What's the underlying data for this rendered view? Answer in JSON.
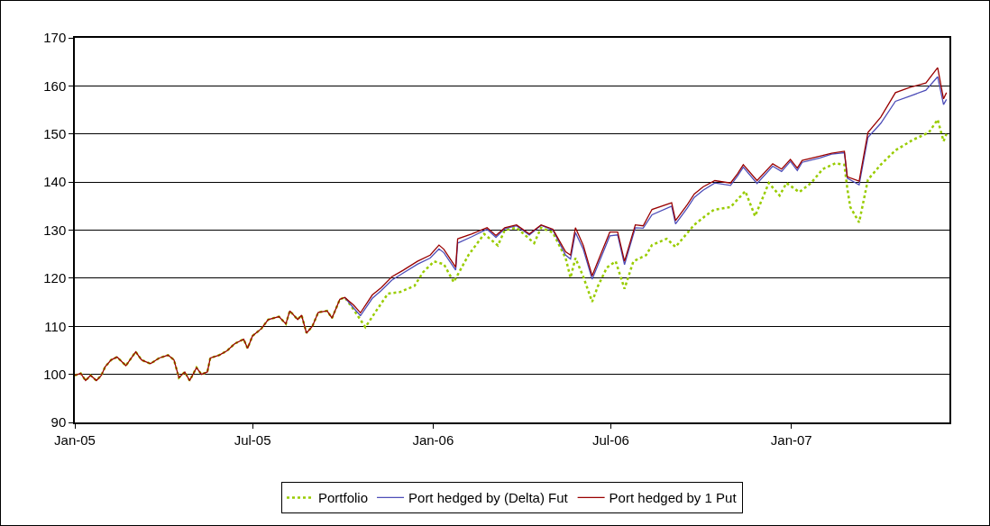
{
  "chart_data": {
    "type": "line",
    "grid": "y",
    "legend": "bottom",
    "marker": "none",
    "line_style": "solid",
    "xlim": [
      "2005-01-01",
      "2007-06-11"
    ],
    "xticks": [
      {
        "value": "2005-01-01",
        "label": "Jan-05"
      },
      {
        "value": "2005-07-01",
        "label": "Jul-05"
      },
      {
        "value": "2006-01-01",
        "label": "Jan-06"
      },
      {
        "value": "2006-07-01",
        "label": "Jul-06"
      },
      {
        "value": "2007-01-01",
        "label": "Jan-07"
      }
    ],
    "ylim": [
      90,
      170
    ],
    "yticks": [
      90,
      100,
      110,
      120,
      130,
      140,
      150,
      160,
      170
    ],
    "x": [
      "2005-01-01",
      "2005-01-07",
      "2005-01-12",
      "2005-01-17",
      "2005-01-23",
      "2005-01-28",
      "2005-02-01",
      "2005-02-07",
      "2005-02-13",
      "2005-02-22",
      "2005-03-04",
      "2005-03-10",
      "2005-03-19",
      "2005-03-28",
      "2005-04-06",
      "2005-04-12",
      "2005-04-17",
      "2005-04-23",
      "2005-04-28",
      "2005-05-05",
      "2005-05-10",
      "2005-05-16",
      "2005-05-19",
      "2005-05-28",
      "2005-06-05",
      "2005-06-13",
      "2005-06-22",
      "2005-06-26",
      "2005-07-01",
      "2005-07-10",
      "2005-07-17",
      "2005-07-28",
      "2005-08-04",
      "2005-08-08",
      "2005-08-16",
      "2005-08-20",
      "2005-08-25",
      "2005-08-31",
      "2005-09-06",
      "2005-09-15",
      "2005-09-20",
      "2005-09-28",
      "2005-10-03",
      "2005-10-12",
      "2005-10-19",
      "2005-10-31",
      "2005-11-09",
      "2005-11-20",
      "2005-12-01",
      "2005-12-16",
      "2005-12-29",
      "2006-01-07",
      "2006-01-12",
      "2006-01-24",
      "2006-01-26",
      "2006-02-09",
      "2006-02-25",
      "2006-03-06",
      "2006-03-15",
      "2006-03-27",
      "2006-04-09",
      "2006-04-21",
      "2006-05-03",
      "2006-05-09",
      "2006-05-16",
      "2006-05-21",
      "2006-05-26",
      "2006-06-03",
      "2006-06-12",
      "2006-06-21",
      "2006-06-30",
      "2006-07-08",
      "2006-07-15",
      "2006-07-26",
      "2006-08-03",
      "2006-08-12",
      "2006-09-01",
      "2006-09-05",
      "2006-09-17",
      "2006-09-24",
      "2006-10-03",
      "2006-10-15",
      "2006-10-31",
      "2006-11-07",
      "2006-11-13",
      "2006-11-27",
      "2006-12-13",
      "2006-12-22",
      "2006-12-31",
      "2007-01-07",
      "2007-01-12",
      "2007-01-30",
      "2007-02-11",
      "2007-02-24",
      "2007-02-27",
      "2007-03-11",
      "2007-03-20",
      "2007-04-02",
      "2007-04-17",
      "2007-05-02",
      "2007-05-18",
      "2007-05-30",
      "2007-06-05",
      "2007-06-08"
    ],
    "series": [
      {
        "name": "Portfolio",
        "color": "#99cc00",
        "line_style": "dotted",
        "x": [
          "2005-01-01",
          "2005-01-07",
          "2005-01-12",
          "2005-01-17",
          "2005-01-23",
          "2005-01-28",
          "2005-02-01",
          "2005-02-07",
          "2005-02-13",
          "2005-02-22",
          "2005-03-04",
          "2005-03-10",
          "2005-03-19",
          "2005-03-28",
          "2005-04-06",
          "2005-04-12",
          "2005-04-17",
          "2005-04-23",
          "2005-04-28",
          "2005-05-05",
          "2005-05-10",
          "2005-05-16",
          "2005-05-19",
          "2005-05-28",
          "2005-06-05",
          "2005-06-13",
          "2005-06-22",
          "2005-06-26",
          "2005-07-01",
          "2005-07-10",
          "2005-07-17",
          "2005-07-28",
          "2005-08-04",
          "2005-08-08",
          "2005-08-16",
          "2005-08-20",
          "2005-08-25",
          "2005-08-31",
          "2005-09-06",
          "2005-09-15",
          "2005-09-20",
          "2005-09-28",
          "2005-10-03",
          "2005-10-12",
          "2005-10-24",
          "2005-11-04",
          "2005-11-16",
          "2005-11-28",
          "2005-12-13",
          "2005-12-22",
          "2006-01-02",
          "2006-01-12",
          "2006-01-22",
          "2006-02-06",
          "2006-02-22",
          "2006-03-08",
          "2006-03-15",
          "2006-03-27",
          "2006-04-14",
          "2006-04-21",
          "2006-05-03",
          "2006-05-16",
          "2006-05-21",
          "2006-05-26",
          "2006-06-03",
          "2006-06-12",
          "2006-06-18",
          "2006-06-27",
          "2006-07-06",
          "2006-07-15",
          "2006-07-24",
          "2006-08-06",
          "2006-08-12",
          "2006-08-27",
          "2006-09-05",
          "2006-09-24",
          "2006-10-05",
          "2006-10-14",
          "2006-10-31",
          "2006-11-15",
          "2006-11-25",
          "2006-12-09",
          "2006-12-20",
          "2006-12-27",
          "2007-01-09",
          "2007-01-21",
          "2007-02-02",
          "2007-02-15",
          "2007-02-24",
          "2007-02-27",
          "2007-03-02",
          "2007-03-11",
          "2007-03-20",
          "2007-04-02",
          "2007-04-17",
          "2007-05-05",
          "2007-05-21",
          "2007-05-30",
          "2007-06-05",
          "2007-06-08"
        ],
        "values": [
          99.8,
          100.2,
          98.7,
          99.8,
          98.7,
          99.8,
          101.6,
          103,
          103.6,
          101.8,
          104.7,
          103,
          102.2,
          103.4,
          104,
          103,
          99.3,
          100.5,
          98.7,
          101.4,
          100,
          100.5,
          103.4,
          104,
          104.9,
          106.4,
          107.3,
          105.4,
          108,
          109.5,
          111.4,
          112,
          110.5,
          113.2,
          111.4,
          112.3,
          108.6,
          110,
          112.9,
          113.2,
          111.7,
          115.6,
          116,
          113.5,
          109.8,
          113.2,
          116.8,
          117.1,
          118.4,
          121.3,
          123.5,
          122.9,
          119.2,
          124.8,
          129.2,
          126.8,
          130,
          130.5,
          127.3,
          130.5,
          129.5,
          124.2,
          120.1,
          124.2,
          120.3,
          115.1,
          118.4,
          122.2,
          123.5,
          117.8,
          123.5,
          124.8,
          126.9,
          128.2,
          126.5,
          131.1,
          132.9,
          134.2,
          134.8,
          138.1,
          132.9,
          139.8,
          137.2,
          139.8,
          137.9,
          139.8,
          142.7,
          143.9,
          143.6,
          138.6,
          134.8,
          131.6,
          140.5,
          143.6,
          146.6,
          148.8,
          150.3,
          153,
          148.5,
          150
        ]
      },
      {
        "name": "Port hedged by (Delta) Fut",
        "color": "#4d4db8",
        "values": [
          null,
          null,
          null,
          null,
          null,
          null,
          null,
          null,
          null,
          null,
          null,
          null,
          null,
          null,
          null,
          null,
          null,
          null,
          null,
          null,
          null,
          null,
          null,
          null,
          null,
          null,
          null,
          null,
          null,
          null,
          null,
          null,
          null,
          null,
          null,
          null,
          null,
          null,
          null,
          null,
          null,
          null,
          116,
          113.8,
          112.2,
          115.8,
          117.4,
          119.6,
          121,
          122.9,
          124.2,
          126.1,
          125.3,
          121.7,
          127.3,
          128.6,
          130.2,
          128.5,
          130.3,
          130.9,
          129,
          131,
          130,
          127.6,
          124.8,
          124,
          129.5,
          126,
          119.8,
          124.3,
          128.8,
          129,
          122.8,
          130.5,
          130.4,
          133.2,
          135,
          131.3,
          134.6,
          136.8,
          138.3,
          139.8,
          139.3,
          141.2,
          143.1,
          139.7,
          143.3,
          142.2,
          144.3,
          142.4,
          144.1,
          145,
          145.8,
          146.1,
          140.8,
          139.4,
          149.3,
          152.2,
          156.8,
          157.9,
          159.1,
          161.9,
          156.1,
          157.2
        ]
      },
      {
        "name": "Port hedged by 1 Put",
        "color": "#990000",
        "values": [
          99.8,
          100.2,
          98.7,
          99.8,
          98.7,
          99.8,
          101.6,
          103,
          103.6,
          101.8,
          104.7,
          103,
          102.2,
          103.4,
          104,
          103,
          99.3,
          100.5,
          98.7,
          101.4,
          100,
          100.5,
          103.4,
          104,
          104.9,
          106.4,
          107.3,
          105.4,
          108,
          109.5,
          111.4,
          112,
          110.5,
          113.2,
          111.4,
          112.3,
          108.6,
          110,
          112.9,
          113.2,
          111.7,
          115.6,
          116,
          114.4,
          112.8,
          116.5,
          118,
          120.3,
          121.6,
          123.5,
          124.8,
          126.9,
          126,
          122.3,
          128.2,
          129.2,
          130.5,
          128.9,
          130.5,
          131.1,
          129.2,
          131.1,
          130.2,
          128,
          125.5,
          124.8,
          130.5,
          126.8,
          120.5,
          125.1,
          129.6,
          129.6,
          123.5,
          131.1,
          130.9,
          134.3,
          135.7,
          132,
          135.3,
          137.5,
          139,
          140.3,
          139.8,
          141.7,
          143.6,
          140.3,
          143.8,
          142.7,
          144.7,
          142.9,
          144.5,
          145.4,
          146,
          146.4,
          141.1,
          140.2,
          150.3,
          153.5,
          158.6,
          159.7,
          160.6,
          163.8,
          157.3,
          158.6
        ]
      }
    ]
  }
}
